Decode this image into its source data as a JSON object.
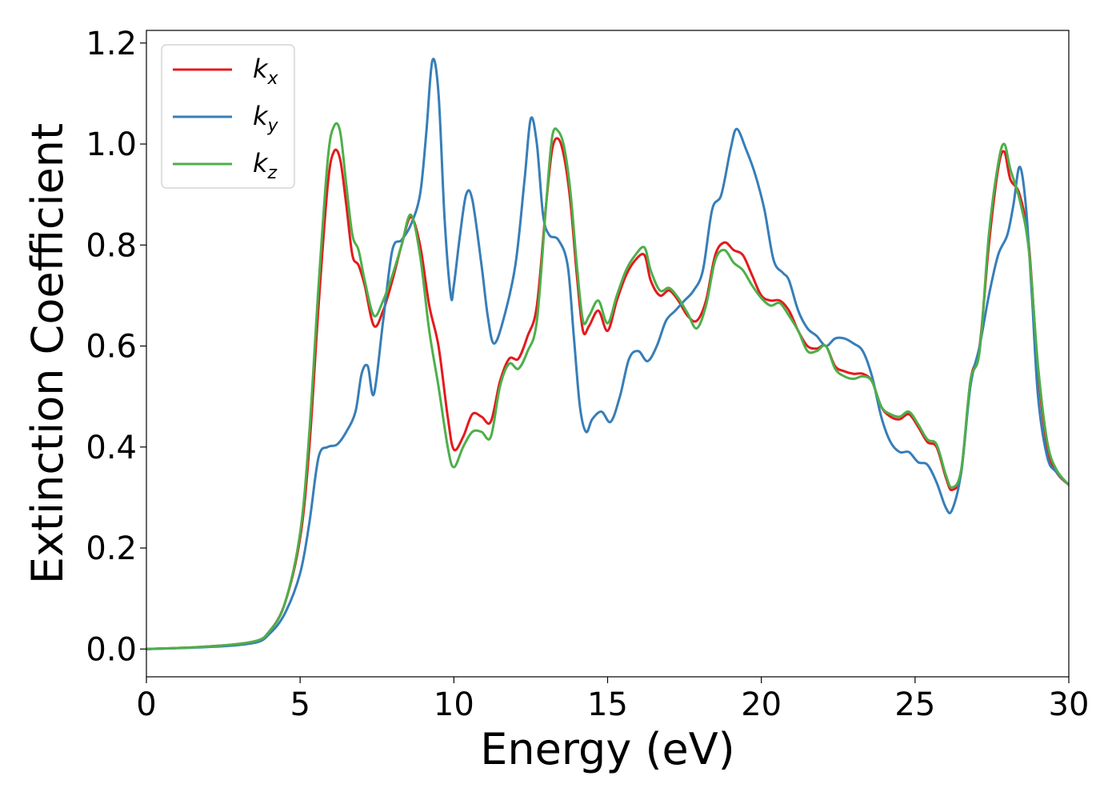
{
  "chart_data": {
    "type": "line",
    "title": "",
    "xlabel": "Energy (eV)",
    "ylabel": "Extinction Coefficient",
    "xlim": [
      0,
      30
    ],
    "ylim": [
      -0.055,
      1.225
    ],
    "xticks": [
      0,
      5,
      10,
      15,
      20,
      25,
      30
    ],
    "yticks": [
      0.0,
      0.2,
      0.4,
      0.6,
      0.8,
      1.0,
      1.2
    ],
    "xtick_labels": [
      "0",
      "5",
      "10",
      "15",
      "20",
      "25",
      "30"
    ],
    "ytick_labels": [
      "0.0",
      "0.2",
      "0.4",
      "0.6",
      "0.8",
      "1.0",
      "1.2"
    ],
    "grid": false,
    "legend_position": "top-left",
    "series": [
      {
        "name": "kx",
        "legend_base": "k",
        "legend_sub": "x",
        "color": "#e41a1c",
        "x": [
          0,
          2,
          3.5,
          4.0,
          4.5,
          5.0,
          5.3,
          5.6,
          5.9,
          6.1,
          6.3,
          6.5,
          6.7,
          6.9,
          7.1,
          7.4,
          7.7,
          8.0,
          8.3,
          8.6,
          8.9,
          9.2,
          9.5,
          9.8,
          10.0,
          10.3,
          10.6,
          10.9,
          11.2,
          11.5,
          11.8,
          12.1,
          12.4,
          12.7,
          13.0,
          13.2,
          13.4,
          13.6,
          13.8,
          14.0,
          14.2,
          14.4,
          14.7,
          15.0,
          15.3,
          15.6,
          15.9,
          16.2,
          16.4,
          16.7,
          17.0,
          17.3,
          17.6,
          17.9,
          18.2,
          18.5,
          18.8,
          19.1,
          19.4,
          19.7,
          20.0,
          20.3,
          20.6,
          20.9,
          21.2,
          21.5,
          21.8,
          22.1,
          22.4,
          22.7,
          23.0,
          23.3,
          23.6,
          23.9,
          24.2,
          24.5,
          24.8,
          25.1,
          25.4,
          25.7,
          26.0,
          26.2,
          26.5,
          26.8,
          27.1,
          27.4,
          27.7,
          27.9,
          28.1,
          28.4,
          28.7,
          29.0,
          29.3,
          29.6,
          30.0
        ],
        "y": [
          0.0,
          0.005,
          0.015,
          0.035,
          0.09,
          0.22,
          0.4,
          0.68,
          0.92,
          0.985,
          0.97,
          0.88,
          0.78,
          0.76,
          0.72,
          0.64,
          0.67,
          0.73,
          0.8,
          0.855,
          0.8,
          0.68,
          0.6,
          0.46,
          0.395,
          0.42,
          0.465,
          0.46,
          0.45,
          0.53,
          0.575,
          0.575,
          0.62,
          0.68,
          0.88,
          0.99,
          1.01,
          0.97,
          0.88,
          0.74,
          0.63,
          0.64,
          0.67,
          0.63,
          0.69,
          0.74,
          0.77,
          0.78,
          0.73,
          0.7,
          0.71,
          0.69,
          0.66,
          0.65,
          0.69,
          0.78,
          0.805,
          0.79,
          0.78,
          0.74,
          0.7,
          0.69,
          0.69,
          0.67,
          0.63,
          0.6,
          0.595,
          0.6,
          0.56,
          0.55,
          0.545,
          0.545,
          0.53,
          0.48,
          0.46,
          0.455,
          0.465,
          0.44,
          0.41,
          0.4,
          0.34,
          0.315,
          0.35,
          0.53,
          0.6,
          0.8,
          0.95,
          0.985,
          0.93,
          0.9,
          0.8,
          0.55,
          0.4,
          0.35,
          0.325
        ]
      },
      {
        "name": "ky",
        "legend_base": "k",
        "legend_sub": "y",
        "color": "#377eb8",
        "x": [
          0,
          2,
          3.5,
          4.0,
          4.5,
          5.0,
          5.3,
          5.6,
          5.9,
          6.2,
          6.5,
          6.8,
          7.0,
          7.2,
          7.4,
          7.7,
          8.0,
          8.3,
          8.6,
          8.9,
          9.1,
          9.3,
          9.5,
          9.7,
          9.9,
          10.0,
          10.2,
          10.4,
          10.6,
          10.9,
          11.1,
          11.3,
          11.6,
          12.0,
          12.3,
          12.5,
          12.7,
          12.9,
          13.1,
          13.4,
          13.7,
          13.9,
          14.1,
          14.3,
          14.5,
          14.8,
          15.1,
          15.4,
          15.7,
          16.0,
          16.3,
          16.6,
          16.9,
          17.2,
          17.5,
          17.8,
          18.1,
          18.4,
          18.7,
          19.0,
          19.2,
          19.5,
          19.8,
          20.1,
          20.4,
          20.7,
          20.9,
          21.2,
          21.5,
          21.8,
          22.1,
          22.4,
          22.7,
          23.0,
          23.3,
          23.6,
          23.9,
          24.2,
          24.5,
          24.8,
          25.1,
          25.4,
          25.7,
          26.0,
          26.2,
          26.5,
          26.8,
          27.1,
          27.4,
          27.7,
          28.0,
          28.2,
          28.4,
          28.6,
          28.8,
          29.0,
          29.3,
          29.6,
          30.0
        ],
        "y": [
          0.0,
          0.004,
          0.012,
          0.03,
          0.07,
          0.15,
          0.25,
          0.38,
          0.4,
          0.405,
          0.43,
          0.47,
          0.545,
          0.56,
          0.505,
          0.65,
          0.79,
          0.81,
          0.84,
          0.9,
          1.02,
          1.165,
          1.1,
          0.85,
          0.7,
          0.72,
          0.82,
          0.9,
          0.89,
          0.76,
          0.66,
          0.605,
          0.65,
          0.76,
          0.93,
          1.05,
          1.0,
          0.86,
          0.82,
          0.81,
          0.76,
          0.62,
          0.48,
          0.43,
          0.455,
          0.47,
          0.45,
          0.5,
          0.575,
          0.59,
          0.57,
          0.6,
          0.65,
          0.67,
          0.69,
          0.71,
          0.75,
          0.87,
          0.9,
          0.99,
          1.03,
          0.99,
          0.94,
          0.87,
          0.77,
          0.745,
          0.73,
          0.67,
          0.635,
          0.62,
          0.6,
          0.615,
          0.615,
          0.605,
          0.59,
          0.54,
          0.46,
          0.41,
          0.39,
          0.39,
          0.37,
          0.365,
          0.33,
          0.28,
          0.275,
          0.35,
          0.52,
          0.6,
          0.7,
          0.78,
          0.82,
          0.88,
          0.955,
          0.88,
          0.7,
          0.5,
          0.38,
          0.35,
          0.325
        ]
      },
      {
        "name": "kz",
        "legend_base": "k",
        "legend_sub": "z",
        "color": "#4daf4a",
        "x": [
          0,
          2,
          3.5,
          4.0,
          4.5,
          5.0,
          5.3,
          5.6,
          5.9,
          6.1,
          6.3,
          6.5,
          6.7,
          6.9,
          7.1,
          7.4,
          7.7,
          8.0,
          8.3,
          8.6,
          8.9,
          9.2,
          9.5,
          9.8,
          10.0,
          10.3,
          10.6,
          10.9,
          11.2,
          11.5,
          11.8,
          12.1,
          12.4,
          12.7,
          13.0,
          13.2,
          13.4,
          13.6,
          13.8,
          14.0,
          14.2,
          14.4,
          14.7,
          15.0,
          15.3,
          15.6,
          15.9,
          16.2,
          16.4,
          16.7,
          17.0,
          17.3,
          17.6,
          17.9,
          18.2,
          18.5,
          18.8,
          19.1,
          19.4,
          19.7,
          20.0,
          20.3,
          20.6,
          20.9,
          21.2,
          21.5,
          21.8,
          22.1,
          22.4,
          22.7,
          23.0,
          23.3,
          23.6,
          23.9,
          24.2,
          24.5,
          24.8,
          25.1,
          25.4,
          25.7,
          26.0,
          26.2,
          26.5,
          26.8,
          27.1,
          27.4,
          27.7,
          27.9,
          28.1,
          28.4,
          28.7,
          29.0,
          29.3,
          29.6,
          30.0
        ],
        "y": [
          0.0,
          0.005,
          0.015,
          0.035,
          0.09,
          0.23,
          0.43,
          0.72,
          0.97,
          1.035,
          1.025,
          0.92,
          0.82,
          0.79,
          0.73,
          0.66,
          0.69,
          0.74,
          0.8,
          0.86,
          0.78,
          0.63,
          0.52,
          0.4,
          0.36,
          0.4,
          0.43,
          0.43,
          0.42,
          0.52,
          0.565,
          0.555,
          0.59,
          0.65,
          0.88,
          1.015,
          1.025,
          0.99,
          0.9,
          0.76,
          0.65,
          0.66,
          0.69,
          0.645,
          0.7,
          0.75,
          0.78,
          0.795,
          0.75,
          0.71,
          0.715,
          0.695,
          0.665,
          0.635,
          0.68,
          0.77,
          0.79,
          0.765,
          0.75,
          0.72,
          0.695,
          0.68,
          0.685,
          0.66,
          0.63,
          0.59,
          0.59,
          0.6,
          0.555,
          0.54,
          0.535,
          0.54,
          0.53,
          0.48,
          0.465,
          0.46,
          0.47,
          0.445,
          0.415,
          0.405,
          0.345,
          0.32,
          0.355,
          0.53,
          0.59,
          0.82,
          0.96,
          1.0,
          0.95,
          0.89,
          0.79,
          0.56,
          0.41,
          0.355,
          0.325
        ]
      }
    ]
  }
}
